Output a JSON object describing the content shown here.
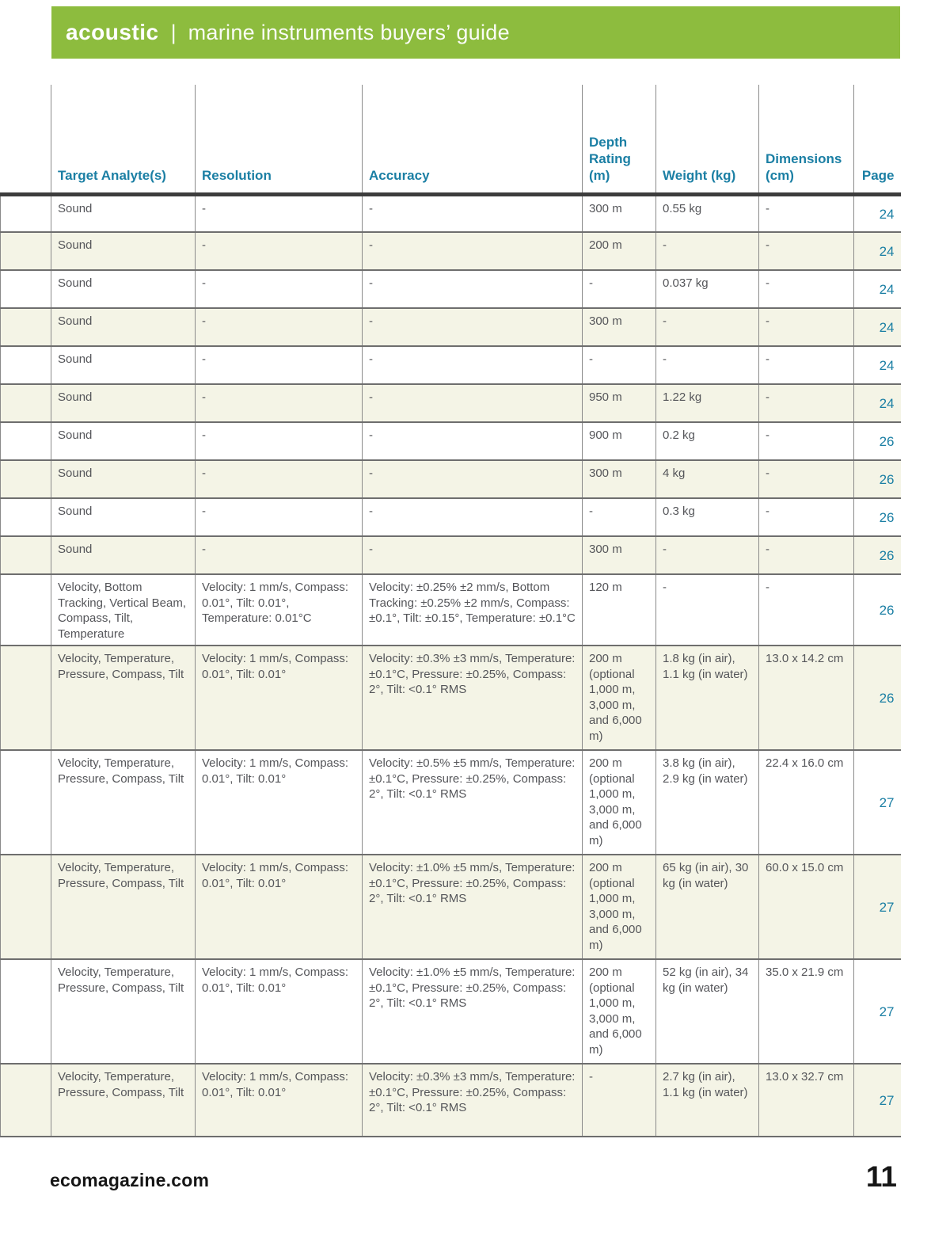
{
  "banner": {
    "brand": "acoustic",
    "separator": "|",
    "title": "marine instruments buyers’ guide",
    "background_color": "#8dbc3e"
  },
  "colors": {
    "header_text": "#1b7fa4",
    "page_number_text": "#1b7fa4",
    "body_text": "#55565a",
    "row_shade": "#f4f4e6",
    "thick_rule": "#3c3c3c"
  },
  "table": {
    "headers": [
      "",
      "Target Analyte(s)",
      "Resolution",
      "Accuracy",
      "Depth Rating (m)",
      "Weight (kg)",
      "Dimensions (cm)",
      "Page"
    ],
    "rows": [
      {
        "target": "Sound",
        "resolution": "-",
        "accuracy": "-",
        "depth": "300 m",
        "weight": "0.55 kg",
        "dimensions": "-",
        "page": "24"
      },
      {
        "target": "Sound",
        "resolution": "-",
        "accuracy": "-",
        "depth": "200 m",
        "weight": "-",
        "dimensions": "-",
        "page": "24"
      },
      {
        "target": "Sound",
        "resolution": "-",
        "accuracy": "-",
        "depth": "-",
        "weight": "0.037 kg",
        "dimensions": "-",
        "page": "24"
      },
      {
        "target": "Sound",
        "resolution": "-",
        "accuracy": "-",
        "depth": "300 m",
        "weight": "-",
        "dimensions": "-",
        "page": "24"
      },
      {
        "target": "Sound",
        "resolution": "-",
        "accuracy": "-",
        "depth": "-",
        "weight": "-",
        "dimensions": "-",
        "page": "24"
      },
      {
        "target": "Sound",
        "resolution": "-",
        "accuracy": "-",
        "depth": "950 m",
        "weight": "1.22 kg",
        "dimensions": "-",
        "page": "24"
      },
      {
        "target": "Sound",
        "resolution": "-",
        "accuracy": "-",
        "depth": "900 m",
        "weight": "0.2 kg",
        "dimensions": "-",
        "page": "26"
      },
      {
        "target": "Sound",
        "resolution": "-",
        "accuracy": "-",
        "depth": "300 m",
        "weight": "4 kg",
        "dimensions": "-",
        "page": "26"
      },
      {
        "target": "Sound",
        "resolution": "-",
        "accuracy": "-",
        "depth": "-",
        "weight": "0.3 kg",
        "dimensions": "-",
        "page": "26"
      },
      {
        "target": "Sound",
        "resolution": "-",
        "accuracy": "-",
        "depth": "300 m",
        "weight": "-",
        "dimensions": "-",
        "page": "26"
      },
      {
        "target": "Velocity, Bottom Tracking, Vertical Beam, Compass, Tilt, Temperature",
        "resolution": "Velocity: 1 mm/s, Compass: 0.01°, Tilt: 0.01°, Temperature: 0.01°C",
        "accuracy": "Velocity: ±0.25% ±2 mm/s, Bottom Tracking: ±0.25% ±2 mm/s, Compass: ±0.1°, Tilt: ±0.15°, Temperature: ±0.1°C",
        "depth": "120 m",
        "weight": "-",
        "dimensions": "-",
        "page": "26"
      },
      {
        "target": "Velocity, Temperature, Pressure, Compass, Tilt",
        "resolution": "Velocity: 1 mm/s, Compass: 0.01°, Tilt: 0.01°",
        "accuracy": "Velocity: ±0.3% ±3 mm/s, Temperature: ±0.1°C, Pressure: ±0.25%, Compass: 2°, Tilt: <0.1° RMS",
        "depth": "200 m (optional 1,000 m, 3,000 m, and 6,000 m)",
        "weight": "1.8 kg (in air), 1.1 kg (in water)",
        "dimensions": "13.0 x 14.2 cm",
        "page": "26"
      },
      {
        "target": "Velocity, Temperature, Pressure, Compass, Tilt",
        "resolution": "Velocity: 1 mm/s, Compass: 0.01°, Tilt: 0.01°",
        "accuracy": "Velocity: ±0.5% ±5 mm/s, Temperature: ±0.1°C, Pressure: ±0.25%, Compass: 2°, Tilt: <0.1° RMS",
        "depth": "200 m (optional 1,000 m, 3,000 m, and 6,000 m)",
        "weight": "3.8 kg (in air), 2.9 kg (in water)",
        "dimensions": "22.4 x 16.0 cm",
        "page": "27"
      },
      {
        "target": "Velocity, Temperature, Pressure, Compass, Tilt",
        "resolution": "Velocity: 1 mm/s, Compass: 0.01°, Tilt: 0.01°",
        "accuracy": "Velocity: ±1.0% ±5 mm/s, Temperature: ±0.1°C, Pressure: ±0.25%, Compass: 2°, Tilt: <0.1° RMS",
        "depth": "200 m (optional 1,000 m, 3,000 m, and 6,000 m)",
        "weight": "65 kg (in air), 30 kg (in water)",
        "dimensions": "60.0 x 15.0 cm",
        "page": "27"
      },
      {
        "target": "Velocity, Temperature, Pressure, Compass, Tilt",
        "resolution": "Velocity: 1 mm/s, Compass: 0.01°, Tilt: 0.01°",
        "accuracy": "Velocity: ±1.0% ±5 mm/s, Temperature: ±0.1°C, Pressure: ±0.25%, Compass: 2°, Tilt: <0.1° RMS",
        "depth": "200 m (optional 1,000 m, 3,000 m, and 6,000 m)",
        "weight": "52 kg (in air), 34 kg (in water)",
        "dimensions": "35.0 x 21.9 cm",
        "page": "27"
      },
      {
        "target": "Velocity, Temperature, Pressure, Compass, Tilt",
        "resolution": "Velocity: 1 mm/s, Compass: 0.01°, Tilt: 0.01°",
        "accuracy": "Velocity: ±0.3% ±3 mm/s, Temperature: ±0.1°C, Pressure: ±0.25%, Compass: 2°, Tilt: <0.1° RMS",
        "depth": "-",
        "weight": "2.7 kg (in air), 1.1 kg (in water)",
        "dimensions": "13.0 x 32.7 cm",
        "page": "27"
      }
    ]
  },
  "footer": {
    "website": "ecomagazine.com",
    "page_number": "11"
  }
}
